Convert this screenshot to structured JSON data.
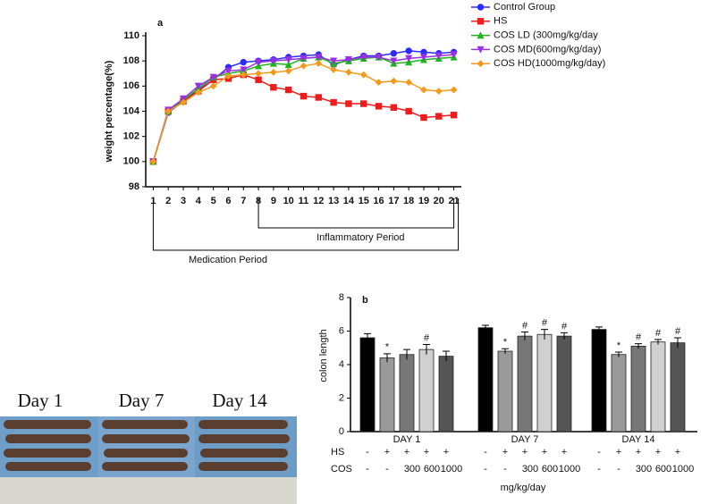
{
  "chart_data": [
    {
      "type": "line",
      "panel_label": "a",
      "ylabel": "weight percentage(%)",
      "x": [
        1,
        2,
        3,
        4,
        5,
        6,
        7,
        8,
        9,
        10,
        11,
        12,
        13,
        14,
        15,
        16,
        17,
        18,
        19,
        20,
        21
      ],
      "xlim": [
        0.5,
        21.5
      ],
      "xticks": [
        1,
        2,
        3,
        4,
        5,
        6,
        7,
        8,
        9,
        10,
        11,
        12,
        13,
        14,
        15,
        16,
        17,
        18,
        19,
        20,
        21
      ],
      "ylim": [
        98,
        110
      ],
      "yticks": [
        98,
        100,
        102,
        104,
        106,
        108,
        110
      ],
      "series": [
        {
          "name": "Control Group",
          "color": "#2b2bff",
          "marker": "circle",
          "values": [
            100,
            103.9,
            104.8,
            105.7,
            106.5,
            107.5,
            107.9,
            108.0,
            108.1,
            108.3,
            108.4,
            108.5,
            107.7,
            108.1,
            108.4,
            108.4,
            108.6,
            108.8,
            108.7,
            108.6,
            108.7
          ]
        },
        {
          "name": "HS",
          "color": "#ee1c1c",
          "marker": "square",
          "values": [
            100,
            104.0,
            104.8,
            105.6,
            106.5,
            106.6,
            106.9,
            106.5,
            105.9,
            105.7,
            105.2,
            105.1,
            104.7,
            104.6,
            104.6,
            104.4,
            104.3,
            104.0,
            103.5,
            103.6,
            103.7
          ]
        },
        {
          "name": "COS LD (300mg/kg/day",
          "color": "#1fb51f",
          "marker": "triangle",
          "values": [
            100,
            104.0,
            104.9,
            105.8,
            106.7,
            107.0,
            107.2,
            107.6,
            107.8,
            107.7,
            108.2,
            108.3,
            107.8,
            108.0,
            108.2,
            108.3,
            107.8,
            107.9,
            108.1,
            108.2,
            108.3
          ]
        },
        {
          "name": "COS MD(600mg/kg/day)",
          "color": "#9b30e0",
          "marker": "tridown",
          "values": [
            100,
            104.1,
            105.0,
            106.0,
            106.7,
            107.2,
            107.3,
            107.9,
            108.0,
            108.1,
            108.2,
            108.3,
            108.0,
            108.1,
            108.3,
            108.3,
            108.0,
            108.2,
            108.3,
            108.4,
            108.5
          ]
        },
        {
          "name": "COS HD(1000mg/kg/day)",
          "color": "#f39a1e",
          "marker": "diamond",
          "values": [
            100,
            104.0,
            104.7,
            105.5,
            106.0,
            106.8,
            106.9,
            107.0,
            107.1,
            107.2,
            107.6,
            107.8,
            107.3,
            107.1,
            106.9,
            106.3,
            106.4,
            106.3,
            105.7,
            105.6,
            105.7
          ]
        }
      ],
      "periods": [
        {
          "label": "Inflammatory Period",
          "range": [
            8,
            21
          ]
        },
        {
          "label": "Medication Period",
          "range": [
            1,
            21
          ]
        }
      ]
    },
    {
      "type": "bar",
      "panel_label": "b",
      "ylabel": "colon length",
      "categories": [
        "DAY 1",
        "DAY 7",
        "DAY 14"
      ],
      "ylim": [
        0,
        8
      ],
      "yticks": [
        0,
        2,
        4,
        6,
        8
      ],
      "series": [
        {
          "color": "#000000",
          "values": [
            5.6,
            6.2,
            6.1
          ],
          "errors": [
            0.25,
            0.15,
            0.15
          ],
          "markers": [
            null,
            null,
            null
          ]
        },
        {
          "color": "#9a9a9a",
          "values": [
            4.4,
            4.8,
            4.6
          ],
          "errors": [
            0.25,
            0.15,
            0.15
          ],
          "markers": [
            "*",
            "*",
            "*"
          ]
        },
        {
          "color": "#777777",
          "values": [
            4.6,
            5.7,
            5.1
          ],
          "errors": [
            0.3,
            0.25,
            0.15
          ],
          "markers": [
            null,
            "#",
            "#"
          ]
        },
        {
          "color": "#d0d0d0",
          "values": [
            4.9,
            5.8,
            5.35
          ],
          "errors": [
            0.3,
            0.3,
            0.15
          ],
          "markers": [
            "#",
            "#",
            "#"
          ]
        },
        {
          "color": "#555555",
          "values": [
            4.5,
            5.7,
            5.3
          ],
          "errors": [
            0.3,
            0.2,
            0.3
          ],
          "markers": [
            null,
            "#",
            "#"
          ]
        }
      ],
      "treatment_rows": [
        {
          "label": "HS",
          "entries": [
            "-",
            "+",
            "+",
            "+",
            "+"
          ]
        },
        {
          "label": "COS",
          "entries": [
            "-",
            "-",
            "300",
            "600",
            "1000"
          ]
        }
      ],
      "unit_note": "mg/kg/day"
    }
  ],
  "photo": {
    "labels": [
      "Day 1",
      "Day 7",
      "Day 14"
    ]
  }
}
